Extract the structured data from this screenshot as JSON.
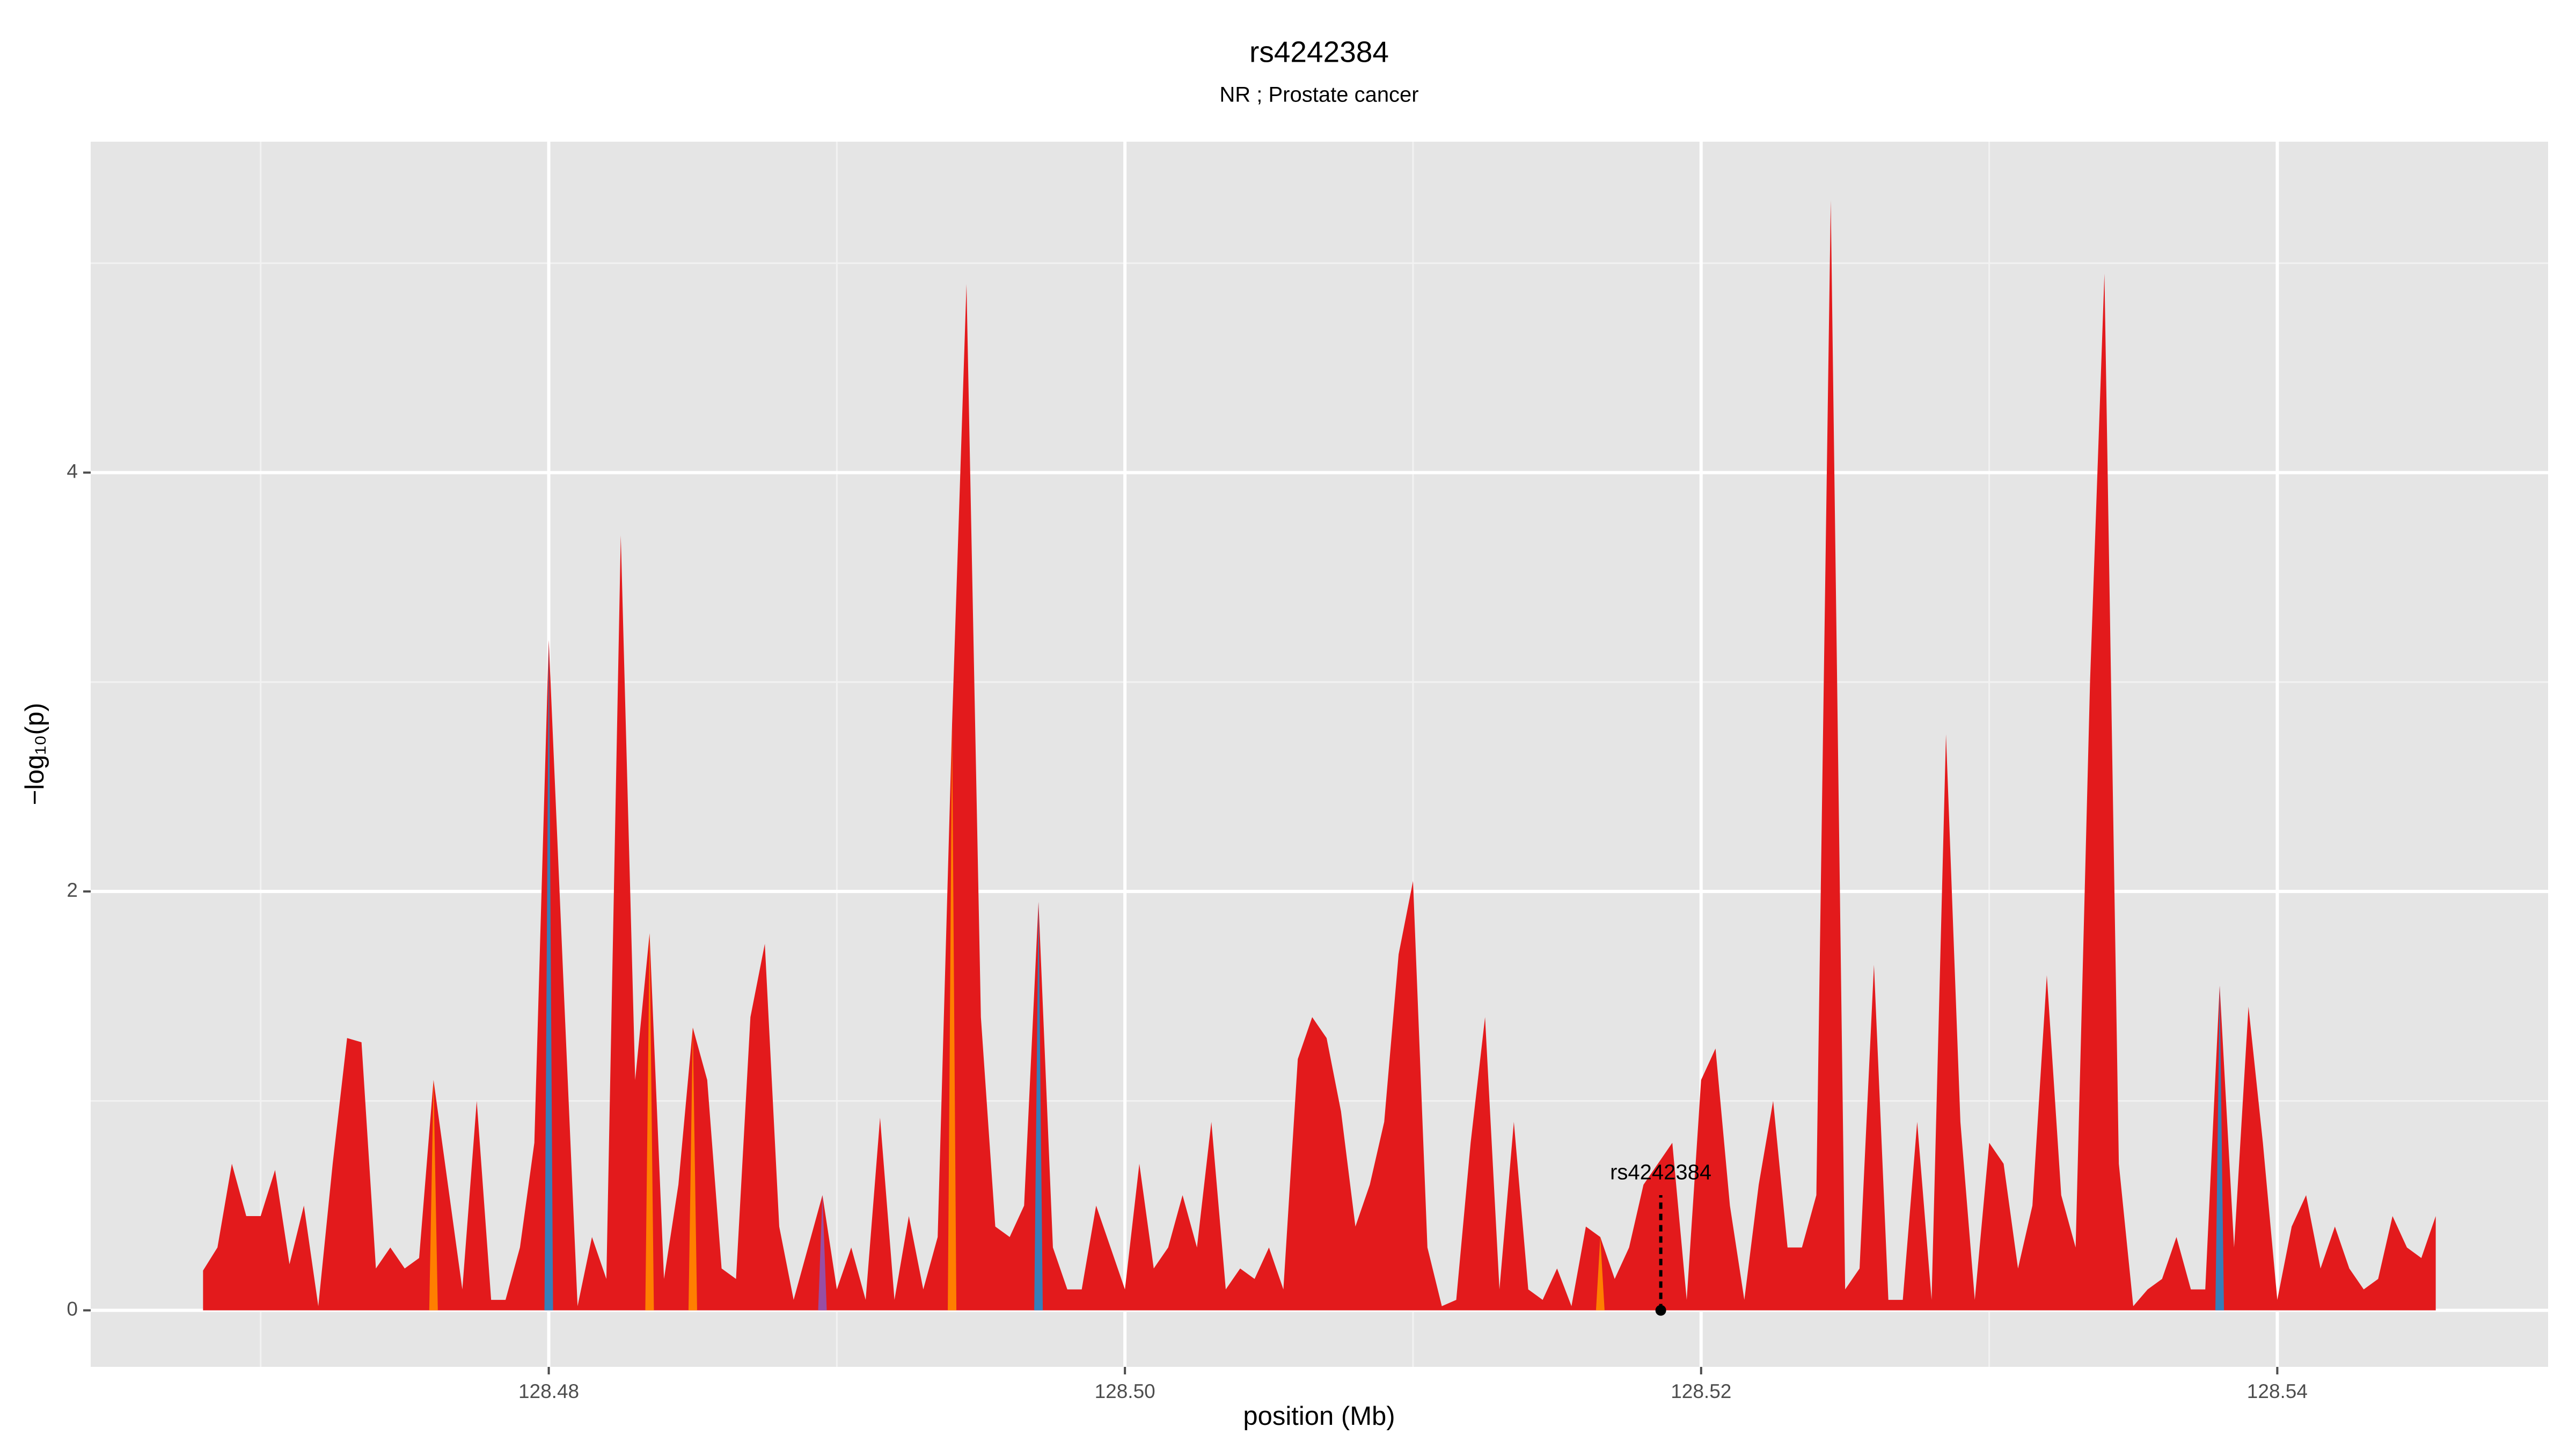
{
  "chart_data": {
    "type": "area",
    "title": "rs4242384",
    "subtitle": "NR ; Prostate cancer",
    "x_label": "position (Mb)",
    "y_label": "−log₁₀(p)",
    "x": [
      128.468,
      128.4685,
      128.469,
      128.4695,
      128.47,
      128.4705,
      128.471,
      128.4715,
      128.472,
      128.4725,
      128.473,
      128.4735,
      128.474,
      128.4745,
      128.475,
      128.4755,
      128.476,
      128.4765,
      128.477,
      128.4775,
      128.478,
      128.4785,
      128.479,
      128.4795,
      128.48,
      128.4805,
      128.481,
      128.4815,
      128.482,
      128.4825,
      128.483,
      128.4835,
      128.484,
      128.4845,
      128.485,
      128.4855,
      128.486,
      128.4865,
      128.487,
      128.4875,
      128.488,
      128.4885,
      128.489,
      128.4895,
      128.49,
      128.4905,
      128.491,
      128.4915,
      128.492,
      128.4925,
      128.493,
      128.4935,
      128.494,
      128.4945,
      128.495,
      128.4955,
      128.496,
      128.4965,
      128.497,
      128.4975,
      128.498,
      128.4985,
      128.499,
      128.4995,
      128.5,
      128.5005,
      128.501,
      128.5015,
      128.502,
      128.5025,
      128.503,
      128.5035,
      128.504,
      128.5045,
      128.505,
      128.5055,
      128.506,
      128.5065,
      128.507,
      128.5075,
      128.508,
      128.5085,
      128.509,
      128.5095,
      128.51,
      128.5105,
      128.511,
      128.5115,
      128.512,
      128.5125,
      128.513,
      128.5135,
      128.514,
      128.5145,
      128.515,
      128.5155,
      128.516,
      128.5165,
      128.517,
      128.5175,
      128.518,
      128.5185,
      128.519,
      128.5195,
      128.52,
      128.5205,
      128.521,
      128.5215,
      128.522,
      128.5225,
      128.523,
      128.5235,
      128.524,
      128.5245,
      128.525,
      128.5255,
      128.526,
      128.5265,
      128.527,
      128.5275,
      128.528,
      128.5285,
      128.529,
      128.5295,
      128.53,
      128.5305,
      128.531,
      128.5315,
      128.532,
      128.5325,
      128.533,
      128.5335,
      128.534,
      128.5345,
      128.535,
      128.5355,
      128.536,
      128.5365,
      128.537,
      128.5375,
      128.538,
      128.5385,
      128.539,
      128.5395,
      128.54,
      128.5405,
      128.541,
      128.5415,
      128.542,
      128.5425,
      128.543,
      128.5435,
      128.544,
      128.5445,
      128.545,
      128.5455
    ],
    "values": [
      0.19,
      0.3,
      0.7,
      0.45,
      0.45,
      0.67,
      0.22,
      0.5,
      0.02,
      0.7,
      1.3,
      1.28,
      0.2,
      0.3,
      0.2,
      0.25,
      1.1,
      0.6,
      0.1,
      1.0,
      0.05,
      0.05,
      0.3,
      0.8,
      3.2,
      1.6,
      0.02,
      0.35,
      0.15,
      3.7,
      1.1,
      1.8,
      0.15,
      0.6,
      1.35,
      1.1,
      0.2,
      0.15,
      1.4,
      1.75,
      0.4,
      0.05,
      0.3,
      0.55,
      0.1,
      0.3,
      0.05,
      0.92,
      0.05,
      0.45,
      0.1,
      0.35,
      2.8,
      4.9,
      1.4,
      0.4,
      0.35,
      0.5,
      1.95,
      0.3,
      0.1,
      0.1,
      0.5,
      0.3,
      0.1,
      0.7,
      0.2,
      0.3,
      0.55,
      0.3,
      0.9,
      0.1,
      0.2,
      0.15,
      0.3,
      0.1,
      1.2,
      1.4,
      1.3,
      0.95,
      0.4,
      0.6,
      0.9,
      1.7,
      2.05,
      0.3,
      0.02,
      0.05,
      0.8,
      1.4,
      0.1,
      0.9,
      0.1,
      0.05,
      0.2,
      0.02,
      0.4,
      0.35,
      0.15,
      0.3,
      0.6,
      0.7,
      0.8,
      0.05,
      1.1,
      1.25,
      0.5,
      0.05,
      0.6,
      1.0,
      0.3,
      0.3,
      0.55,
      5.3,
      0.1,
      0.2,
      1.65,
      0.05,
      0.05,
      0.9,
      0.05,
      2.75,
      0.9,
      0.05,
      0.8,
      0.7,
      0.2,
      0.5,
      1.6,
      0.55,
      0.3,
      3.0,
      4.95,
      0.7,
      0.02,
      0.1,
      0.15,
      0.35,
      0.1,
      0.1,
      1.55,
      0.3,
      1.45,
      0.8,
      0.05,
      0.4,
      0.55,
      0.2,
      0.4,
      0.2,
      0.1,
      0.15,
      0.45,
      0.3,
      0.25,
      0.45
    ],
    "color": "#e31a1c",
    "point_colors": [
      "#e31a1c",
      "#e31a1c",
      "#e31a1c",
      "#e31a1c",
      "#e31a1c",
      "#e31a1c",
      "#e31a1c",
      "#e31a1c",
      "#e31a1c",
      "#e31a1c",
      "#e31a1c",
      "#e31a1c",
      "#e31a1c",
      "#e31a1c",
      "#e31a1c",
      "#e31a1c",
      "#ff7f00",
      "#e31a1c",
      "#e31a1c",
      "#e31a1c",
      "#e31a1c",
      "#e31a1c",
      "#e31a1c",
      "#e31a1c",
      "#377eb8",
      "#e31a1c",
      "#e31a1c",
      "#e31a1c",
      "#e31a1c",
      "#e31a1c",
      "#e31a1c",
      "#ff7f00",
      "#e31a1c",
      "#e31a1c",
      "#ff7f00",
      "#e31a1c",
      "#e31a1c",
      "#e31a1c",
      "#e31a1c",
      "#e31a1c",
      "#e31a1c",
      "#e31a1c",
      "#e31a1c",
      "#984ea3",
      "#e31a1c",
      "#e31a1c",
      "#e31a1c",
      "#e31a1c",
      "#e31a1c",
      "#e31a1c",
      "#e31a1c",
      "#e31a1c",
      "#ff7f00",
      "#e31a1c",
      "#e31a1c",
      "#e31a1c",
      "#e31a1c",
      "#e31a1c",
      "#377eb8",
      "#e31a1c",
      "#e31a1c",
      "#e31a1c",
      "#e31a1c",
      "#e31a1c",
      "#e31a1c",
      "#e31a1c",
      "#e31a1c",
      "#e31a1c",
      "#e31a1c",
      "#e31a1c",
      "#e31a1c",
      "#e31a1c",
      "#e31a1c",
      "#e31a1c",
      "#e31a1c",
      "#e31a1c",
      "#e31a1c",
      "#e31a1c",
      "#e31a1c",
      "#e31a1c",
      "#e31a1c",
      "#e31a1c",
      "#e31a1c",
      "#e31a1c",
      "#e31a1c",
      "#e31a1c",
      "#e31a1c",
      "#e31a1c",
      "#e31a1c",
      "#e31a1c",
      "#e31a1c",
      "#e31a1c",
      "#e31a1c",
      "#e31a1c",
      "#e31a1c",
      "#e31a1c",
      "#e31a1c",
      "#ff7f00",
      "#e31a1c",
      "#e31a1c",
      "#e31a1c",
      "#e31a1c",
      "#e31a1c",
      "#e31a1c",
      "#e31a1c",
      "#e31a1c",
      "#e31a1c",
      "#e31a1c",
      "#e31a1c",
      "#e31a1c",
      "#e31a1c",
      "#e31a1c",
      "#e31a1c",
      "#e31a1c",
      "#e31a1c",
      "#e31a1c",
      "#e31a1c",
      "#e31a1c",
      "#e31a1c",
      "#e31a1c",
      "#e31a1c",
      "#e31a1c",
      "#e31a1c",
      "#e31a1c",
      "#e31a1c",
      "#e31a1c",
      "#e31a1c",
      "#e31a1c",
      "#e31a1c",
      "#e31a1c",
      "#e31a1c",
      "#e31a1c",
      "#e31a1c",
      "#e31a1c",
      "#e31a1c",
      "#e31a1c",
      "#e31a1c",
      "#e31a1c",
      "#e31a1c",
      "#e31a1c",
      "#377eb8",
      "#e31a1c",
      "#e31a1c",
      "#e31a1c",
      "#e31a1c",
      "#e31a1c",
      "#e31a1c",
      "#e31a1c",
      "#e31a1c",
      "#e31a1c",
      "#e31a1c",
      "#e31a1c",
      "#e31a1c",
      "#e31a1c",
      "#e31a1c",
      "#e31a1c"
    ],
    "annotation": {
      "text": "rs4242384",
      "x": 128.5186,
      "y": 0.55
    },
    "xlim": [
      128.4641,
      128.5494
    ],
    "ylim": [
      -0.27,
      5.58
    ],
    "xticks": [
      128.48,
      {
        "value": 128.5,
        "label": "128.50"
      },
      128.52,
      128.54
    ],
    "yticks": [
      0,
      2,
      4
    ],
    "x_minor_grid": [
      128.47,
      128.49,
      128.51,
      128.53
    ],
    "y_minor_grid": [
      1,
      3,
      5
    ],
    "grid": true
  }
}
